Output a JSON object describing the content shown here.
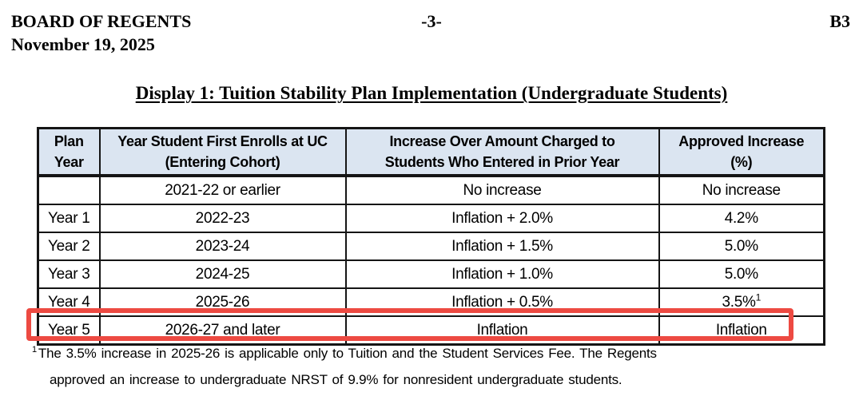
{
  "page_header": {
    "organization": "BOARD OF REGENTS",
    "date": "November 19, 2025",
    "page_number": "-3-",
    "item_code": "B3"
  },
  "display_title": "Display 1: Tuition Stability Plan Implementation (Undergraduate Students)",
  "table": {
    "headers": {
      "plan_year": "Plan\nYear",
      "cohort": "Year Student First Enrolls at UC\n(Entering Cohort)",
      "increase_rule": "Increase Over Amount Charged to\nStudents Who Entered in Prior Year",
      "approved_increase": "Approved Increase\n(%)"
    },
    "rows": [
      {
        "plan_year": "",
        "cohort": "2021-22 or earlier",
        "increase_rule": "No increase",
        "approved_increase": "No increase"
      },
      {
        "plan_year": "Year 1",
        "cohort": "2022-23",
        "increase_rule": "Inflation + 2.0%",
        "approved_increase": "4.2%"
      },
      {
        "plan_year": "Year 2",
        "cohort": "2023-24",
        "increase_rule": "Inflation + 1.5%",
        "approved_increase": "5.0%"
      },
      {
        "plan_year": "Year 3",
        "cohort": "2024-25",
        "increase_rule": "Inflation + 1.0%",
        "approved_increase": "5.0%"
      },
      {
        "plan_year": "Year 4",
        "cohort": "2025-26",
        "increase_rule": "Inflation + 0.5%",
        "approved_increase": "3.5%",
        "approved_increase_footnote_marker": "1"
      },
      {
        "plan_year": "Year 5",
        "cohort": "2026-27 and later",
        "increase_rule": "Inflation",
        "approved_increase": "Inflation",
        "highlighted": true
      }
    ]
  },
  "footnote": {
    "marker": "1",
    "line1": "The 3.5% increase in 2025-26 is applicable only to Tuition and the Student Services Fee. The Regents",
    "line2": "approved an increase to undergraduate NRST of 9.9% for nonresident undergraduate students."
  },
  "colors": {
    "table_header_background": "#dbe5f1",
    "highlight_box_red": "#ed4a42",
    "table_border": "#151515",
    "text": "#000000",
    "page_background": "#ffffff"
  }
}
